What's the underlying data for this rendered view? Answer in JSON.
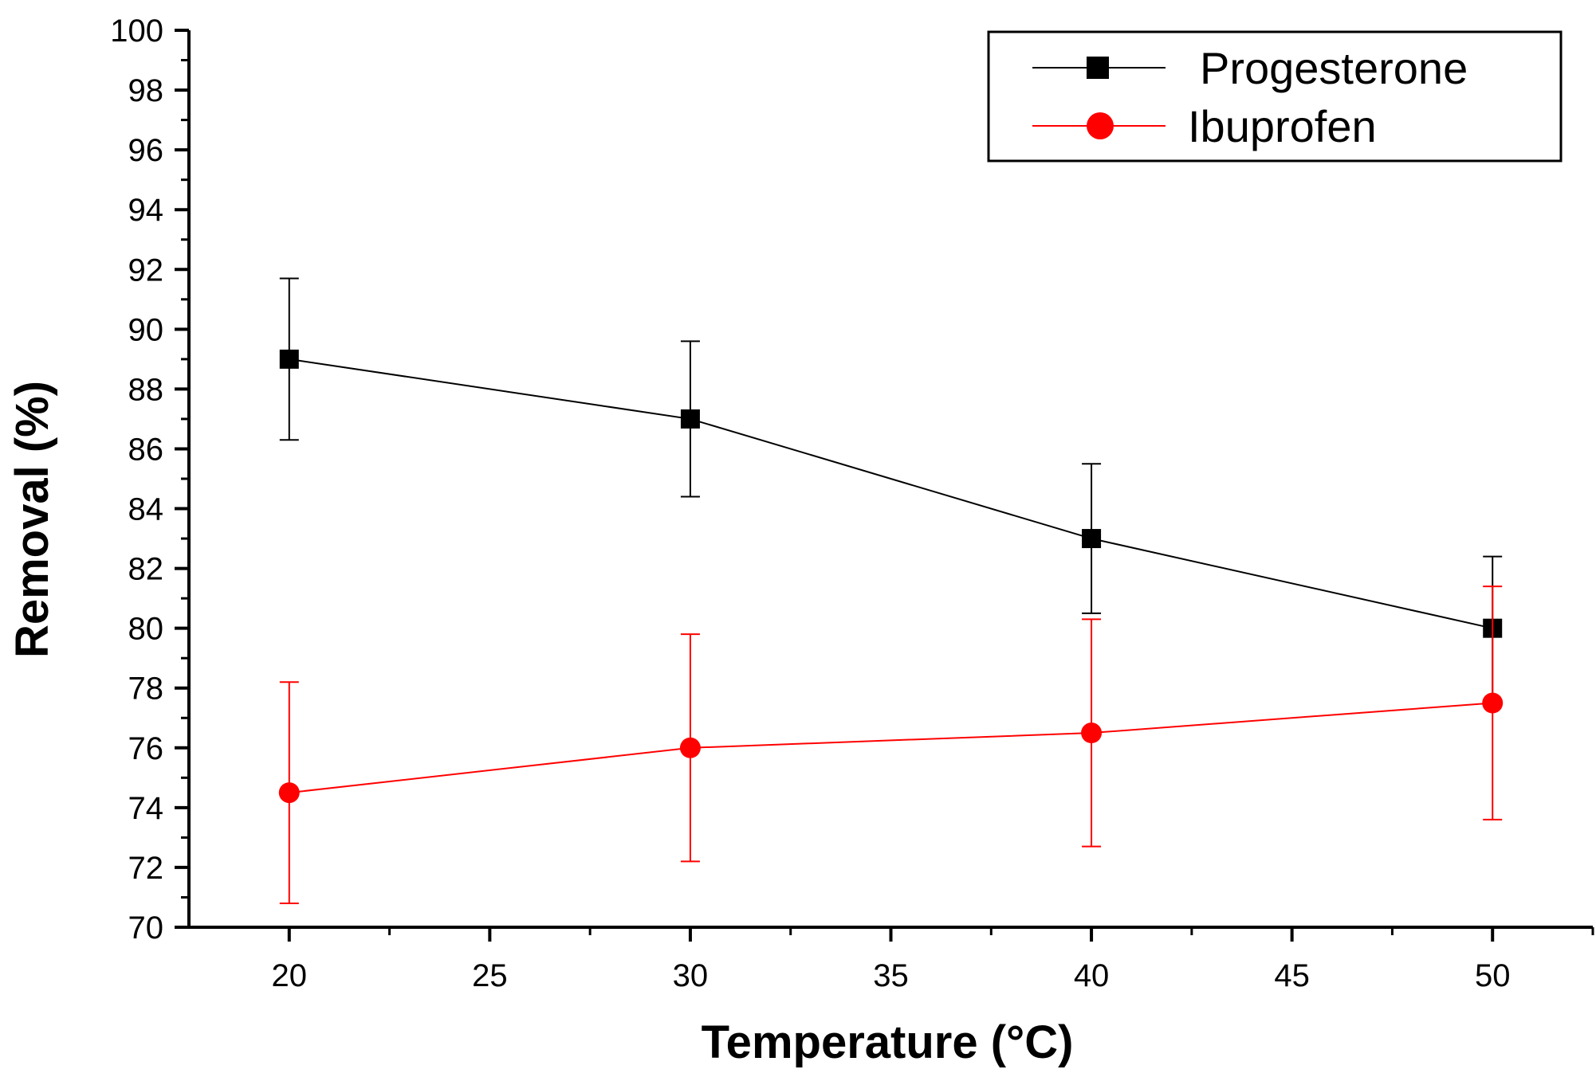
{
  "chart_data": {
    "type": "line",
    "title": "",
    "xlabel": "Temperature (°C)",
    "ylabel": "Removal (%)",
    "xlim": [
      17.5,
      52.5
    ],
    "ylim": [
      70,
      100
    ],
    "x_ticks": [
      20,
      25,
      30,
      35,
      40,
      45,
      50
    ],
    "x_tick_labels": [
      "20",
      "25",
      "30",
      "35",
      "40",
      "45",
      "50"
    ],
    "y_ticks": [
      70,
      72,
      74,
      76,
      78,
      80,
      82,
      84,
      86,
      88,
      90,
      92,
      94,
      96,
      98,
      100
    ],
    "y_tick_labels": [
      "70",
      "72",
      "74",
      "76",
      "78",
      "80",
      "82",
      "84",
      "86",
      "88",
      "90",
      "92",
      "94",
      "96",
      "98",
      "100"
    ],
    "legend_position": "top-right",
    "series": [
      {
        "name": "Progesterone",
        "color": "#000000",
        "marker": "square",
        "x": [
          20,
          30,
          40,
          50
        ],
        "y": [
          89,
          87,
          83,
          80
        ],
        "err_low": [
          86.3,
          84.4,
          80.5,
          77.6
        ],
        "err_high": [
          91.7,
          89.6,
          85.5,
          82.4
        ]
      },
      {
        "name": "Ibuprofen",
        "color": "#ff0000",
        "marker": "circle",
        "x": [
          20,
          30,
          40,
          50
        ],
        "y": [
          74.5,
          76,
          76.5,
          77.5
        ],
        "err_low": [
          70.8,
          72.2,
          72.7,
          73.6
        ],
        "err_high": [
          78.2,
          79.8,
          80.3,
          81.4
        ]
      }
    ]
  }
}
